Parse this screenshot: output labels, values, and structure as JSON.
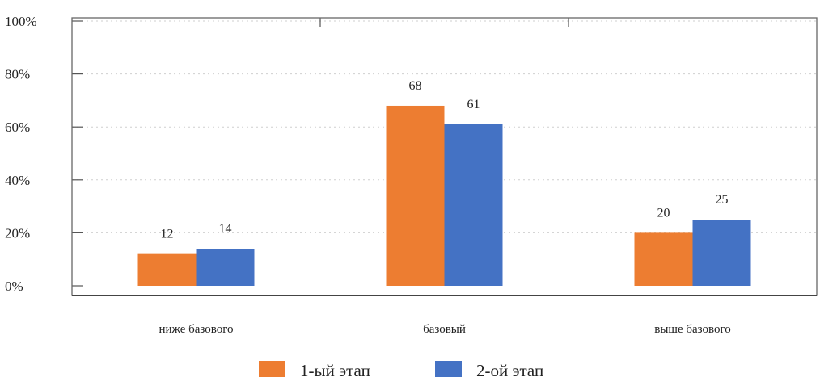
{
  "chart_data": {
    "type": "bar",
    "title": "",
    "xlabel": "",
    "ylabel": "",
    "categories": [
      "ниже базового",
      "базовый",
      "выше базового"
    ],
    "series": [
      {
        "name": "1-ый этап",
        "color": "#ED7D31",
        "values": [
          12,
          68,
          20
        ]
      },
      {
        "name": "2-ой этап",
        "color": "#4472C4",
        "values": [
          14,
          61,
          25
        ]
      }
    ],
    "ylim": [
      0,
      100
    ],
    "yticks": [
      {
        "value": 0,
        "label": "0%"
      },
      {
        "value": 20,
        "label": "20%"
      },
      {
        "value": 40,
        "label": "40%"
      },
      {
        "value": 60,
        "label": "60%"
      },
      {
        "value": 80,
        "label": "80%"
      },
      {
        "value": 100,
        "label": "100%"
      }
    ],
    "grid": true,
    "legend": "bottom-center",
    "data_labels": true
  }
}
